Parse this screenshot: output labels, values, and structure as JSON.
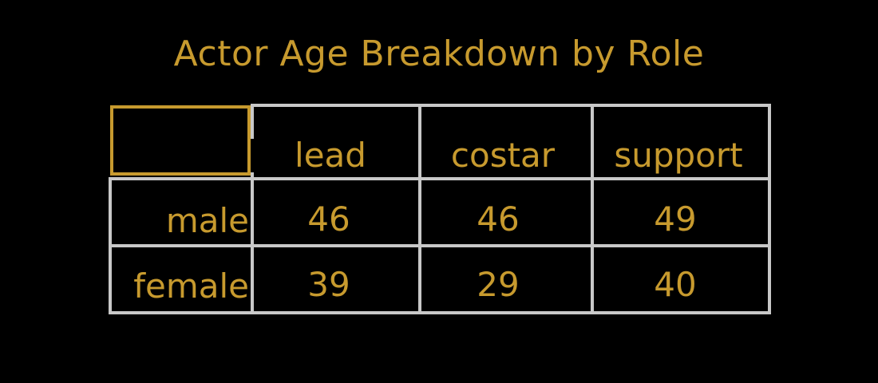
{
  "chart_data": {
    "type": "table",
    "title": "Actor Age Breakdown by Role",
    "columns": [
      "lead",
      "costar",
      "support"
    ],
    "rows": [
      {
        "label": "male",
        "values": [
          46,
          46,
          49
        ]
      },
      {
        "label": "female",
        "values": [
          39,
          29,
          40
        ]
      }
    ]
  },
  "colors": {
    "text": "#C79A2E",
    "grid": "#C8C8C8",
    "background": "#000000",
    "highlight_border": "#C79A2E"
  }
}
